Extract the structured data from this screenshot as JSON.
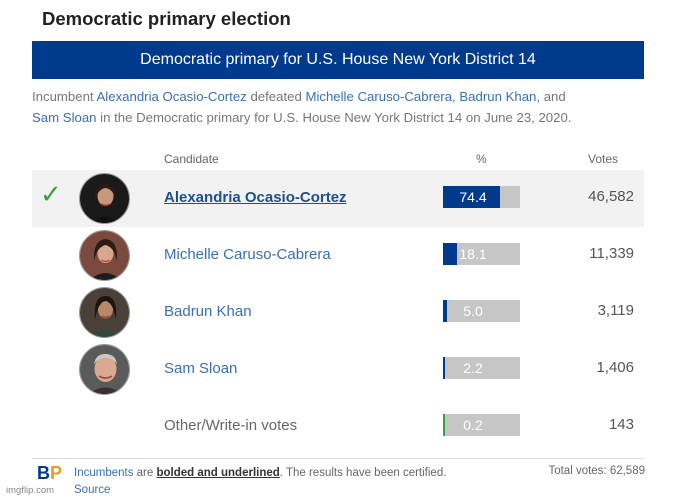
{
  "page_title": "Democratic primary election",
  "banner": "Democratic primary for U.S. House New York District 14",
  "summary": {
    "p1": "Incumbent ",
    "l1": "Alexandria Ocasio-Cortez",
    "p2": " defeated ",
    "l2": "Michelle Caruso-Cabrera",
    "p3": ", ",
    "l3": "Badrun Khan",
    "p4": ", and",
    "l4": "Sam Sloan",
    "p5": " in the Democratic primary for U.S. House New York District 14 on June 23, 2020."
  },
  "headers": {
    "candidate": "Candidate",
    "percent": "%",
    "votes": "Votes"
  },
  "check_icon": "✓",
  "candidates": [
    {
      "name": "Alexandria Ocasio-Cortez",
      "percent": "74.4",
      "votes": "46,582"
    },
    {
      "name": "Michelle Caruso-Cabrera",
      "percent": "18.1",
      "votes": "11,339"
    },
    {
      "name": "Badrun Khan",
      "percent": "5.0",
      "votes": "3,119"
    },
    {
      "name": "Sam Sloan",
      "percent": "2.2",
      "votes": "1,406"
    },
    {
      "name": "Other/Write-in votes",
      "percent": "0.2",
      "votes": "143"
    }
  ],
  "footer": {
    "logo_b": "B",
    "logo_p": "P",
    "incumbents_link": "Incumbents",
    "text1": " are ",
    "bold_text": "bolded and underlined",
    "text2": ". The results have been certified. ",
    "source_link": "Source",
    "total_votes": "Total votes: 62,589"
  },
  "watermark": "imgflip.com",
  "colors": {
    "banner": "#003a8c",
    "bar_fill": "#003a8c",
    "bar_bg": "#c6c6c6",
    "link": "#3a6fb6",
    "check": "#3aa043",
    "other_fill": "#3aa043"
  }
}
